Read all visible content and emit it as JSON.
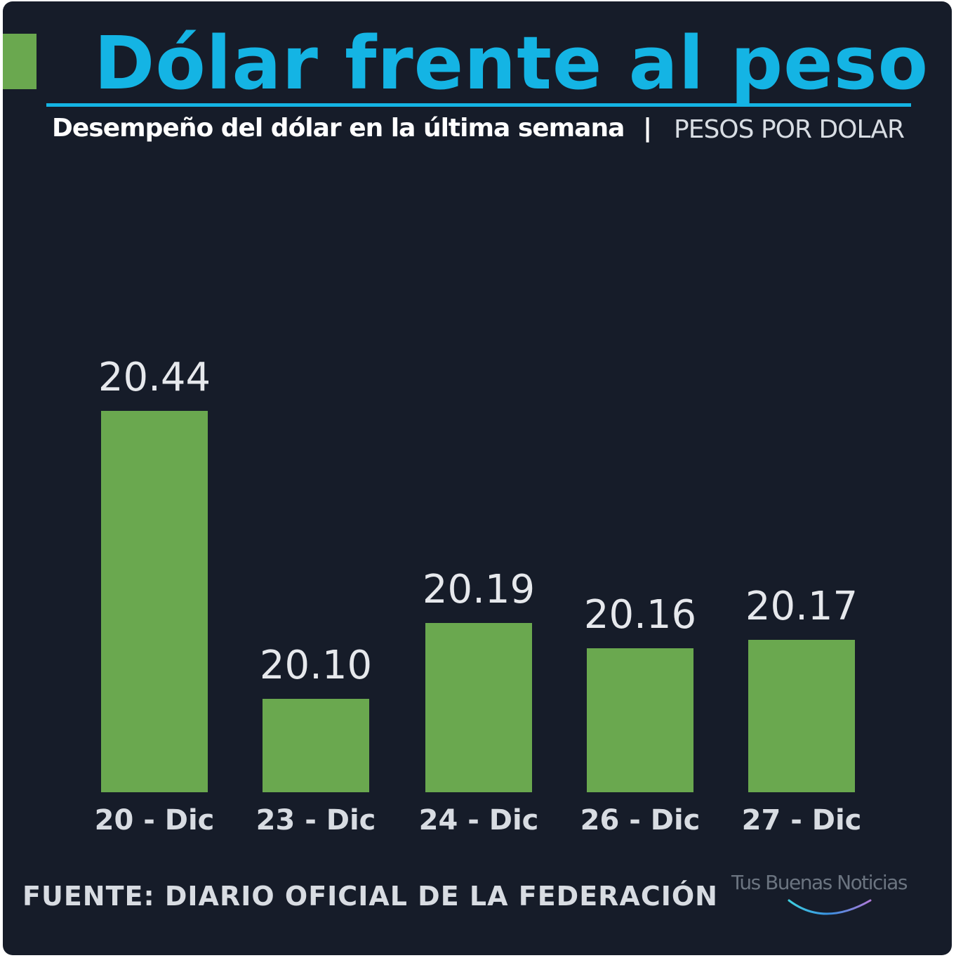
{
  "title": "Dólar frente al peso",
  "subtitle": "Desempeño del dólar en la última semana",
  "separator": "|",
  "unit_label": "PESOS POR DOLAR",
  "source": "FUENTE: DIARIO OFICIAL DE LA FEDERACIÓN",
  "logo": {
    "text": "Tus Buenas Noticias"
  },
  "colors": {
    "background": "#161c29",
    "bar": "#6aa84f",
    "title": "#14b4e4",
    "accent": "#6aa84f"
  },
  "chart_data": {
    "type": "bar",
    "title": "Dólar frente al peso",
    "subtitle": "Desempeño del dólar en la última semana",
    "ylabel": "PESOS POR DOLAR",
    "categories": [
      "20 - Dic",
      "23 - Dic",
      "24 - Dic",
      "26 - Dic",
      "27 - Dic"
    ],
    "values": [
      20.44,
      20.1,
      20.19,
      20.16,
      20.17
    ],
    "value_labels": [
      "20.44",
      "20.10",
      "20.19",
      "20.16",
      "20.17"
    ],
    "ylim": [
      19.99,
      20.5
    ],
    "grid": false,
    "legend": "none"
  }
}
